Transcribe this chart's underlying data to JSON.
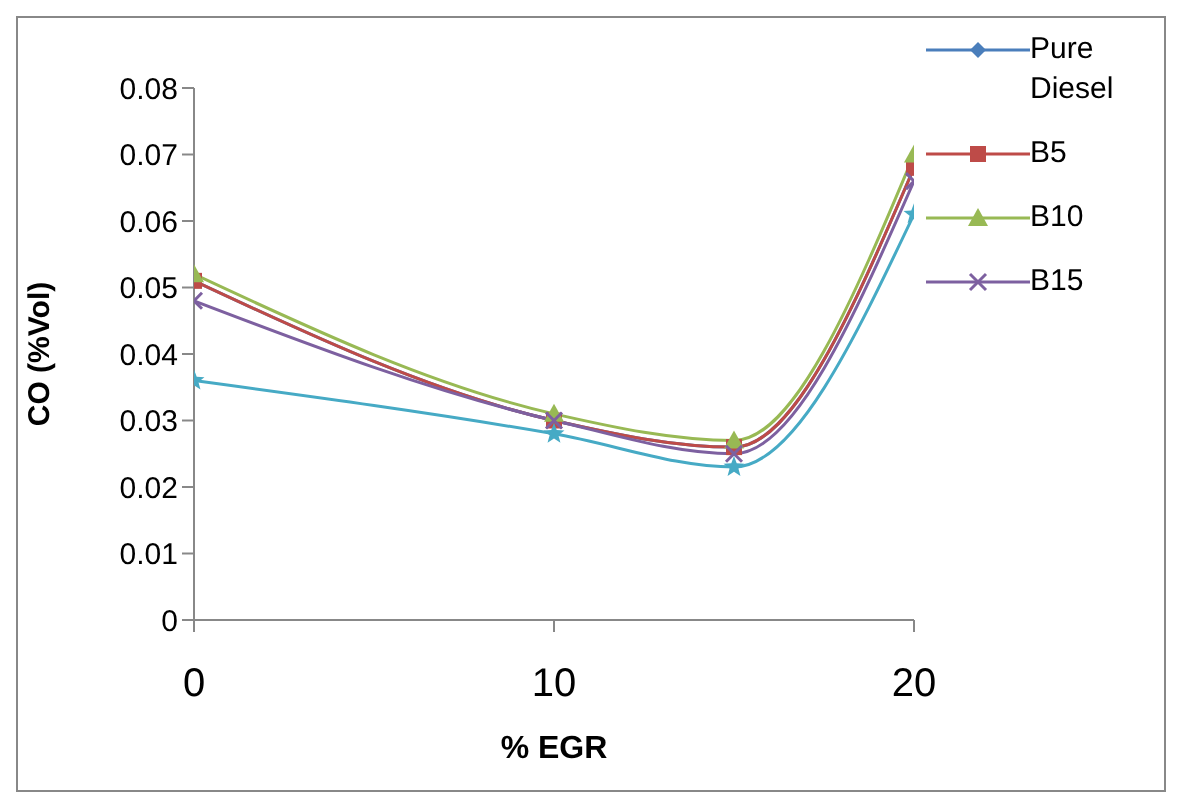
{
  "chart_data": {
    "type": "line",
    "xlabel": "% EGR",
    "ylabel": "CO (%Vol)",
    "x": [
      0,
      10,
      15,
      20
    ],
    "xlim": [
      0,
      20
    ],
    "xticks": [
      0,
      10,
      20
    ],
    "ylim": [
      0,
      0.08
    ],
    "yticks": [
      0,
      0.01,
      0.02,
      0.03,
      0.04,
      0.05,
      0.06,
      0.07,
      0.08
    ],
    "grid": false,
    "legend": "top right",
    "series": [
      {
        "name": "Pure Diesel",
        "color": "#4a7ebb",
        "marker": "diamond",
        "values": [
          0.051,
          0.03,
          0.026,
          0.068
        ]
      },
      {
        "name": "B5",
        "color": "#be4b48",
        "marker": "square",
        "values": [
          0.051,
          0.03,
          0.026,
          0.068
        ]
      },
      {
        "name": "B10",
        "color": "#98b954",
        "marker": "triangle",
        "values": [
          0.052,
          0.031,
          0.027,
          0.07
        ]
      },
      {
        "name": "B15",
        "color": "#7d60a0",
        "marker": "cross",
        "values": [
          0.048,
          0.03,
          0.025,
          0.066
        ]
      },
      {
        "color": "#46aac5",
        "marker": "star",
        "values": [
          0.036,
          0.028,
          0.023,
          0.061
        ]
      }
    ]
  }
}
